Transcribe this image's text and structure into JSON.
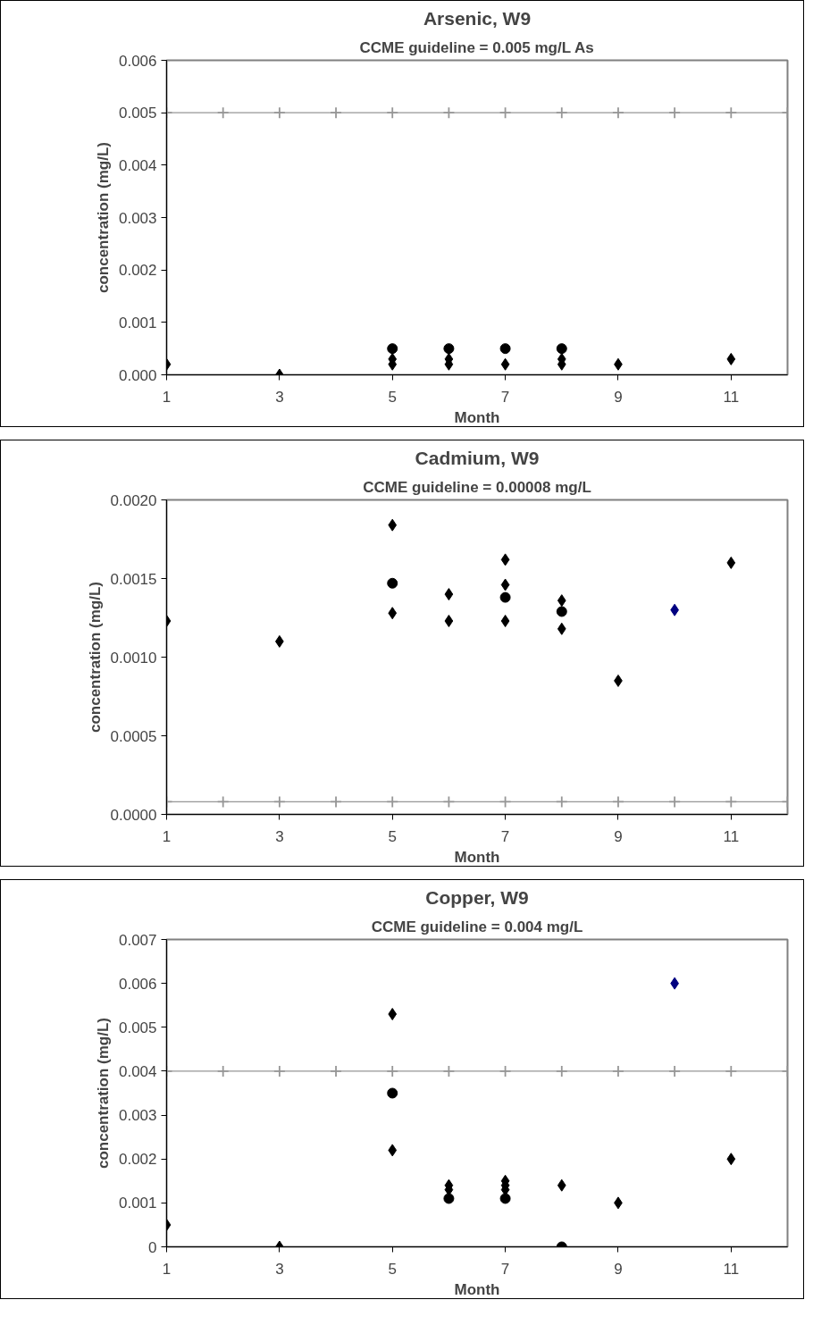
{
  "chart_data": [
    {
      "type": "scatter",
      "title": "Arsenic, W9",
      "subtitle": "CCME guideline = 0.005 mg/L As",
      "xlabel": "Month",
      "ylabel": "concentration (mg/L)",
      "xlim": [
        1,
        12
      ],
      "xticks": [
        1,
        3,
        5,
        7,
        9,
        11
      ],
      "ylim": [
        0,
        0.006
      ],
      "yticks": [
        {
          "value": 0,
          "label": "0.000"
        },
        {
          "value": 0.001,
          "label": "0.001"
        },
        {
          "value": 0.002,
          "label": "0.002"
        },
        {
          "value": 0.003,
          "label": "0.003"
        },
        {
          "value": 0.004,
          "label": "0.004"
        },
        {
          "value": 0.005,
          "label": "0.005"
        },
        {
          "value": 0.006,
          "label": "0.006"
        }
      ],
      "grid": false,
      "series": [
        {
          "type": "line",
          "marker": "cross",
          "color": "#969696",
          "x": [
            1,
            2,
            3,
            4,
            5,
            6,
            7,
            8,
            9,
            10,
            11,
            12
          ],
          "values": [
            0.005,
            0.005,
            0.005,
            0.005,
            0.005,
            0.005,
            0.005,
            0.005,
            0.005,
            0.005,
            0.005,
            0.005
          ]
        },
        {
          "marker": "diamond",
          "color": "#000000",
          "x": [
            1,
            3,
            5,
            5,
            6,
            6,
            7,
            8,
            8,
            9,
            11
          ],
          "values": [
            0.0002,
            0,
            0.0003,
            0.0002,
            0.0003,
            0.0002,
            0.0002,
            0.0003,
            0.0002,
            0.0002,
            0.0003
          ]
        },
        {
          "marker": "circle",
          "color": "#000000",
          "x": [
            5,
            6,
            7,
            8
          ],
          "values": [
            0.0005,
            0.0005,
            0.0005,
            0.0005
          ]
        }
      ]
    },
    {
      "type": "scatter",
      "title": "Cadmium, W9",
      "subtitle": "CCME guideline = 0.00008 mg/L",
      "xlabel": "Month",
      "ylabel": "concentration (mg/L)",
      "xlim": [
        1,
        12
      ],
      "xticks": [
        1,
        3,
        5,
        7,
        9,
        11
      ],
      "ylim": [
        0,
        0.002
      ],
      "yticks": [
        {
          "value": 0,
          "label": "0.0000"
        },
        {
          "value": 0.0005,
          "label": "0.0005"
        },
        {
          "value": 0.001,
          "label": "0.0010"
        },
        {
          "value": 0.0015,
          "label": "0.0015"
        },
        {
          "value": 0.002,
          "label": "0.0020"
        }
      ],
      "grid": false,
      "series": [
        {
          "type": "line",
          "marker": "cross",
          "color": "#969696",
          "x": [
            1,
            2,
            3,
            4,
            5,
            6,
            7,
            8,
            9,
            10,
            11,
            12
          ],
          "values": [
            8e-05,
            8e-05,
            8e-05,
            8e-05,
            8e-05,
            8e-05,
            8e-05,
            8e-05,
            8e-05,
            8e-05,
            8e-05,
            8e-05
          ]
        },
        {
          "marker": "diamond",
          "color": "#000000",
          "x": [
            1,
            3,
            5,
            5,
            6,
            6,
            7,
            7,
            7,
            8,
            8,
            9,
            11
          ],
          "values": [
            0.00123,
            0.0011,
            0.00184,
            0.00128,
            0.0014,
            0.00123,
            0.00162,
            0.00146,
            0.00123,
            0.00136,
            0.00118,
            0.00085,
            0.0016
          ]
        },
        {
          "marker": "circle",
          "color": "#000000",
          "x": [
            5,
            7,
            8
          ],
          "values": [
            0.00147,
            0.00138,
            0.00129
          ]
        },
        {
          "marker": "diamond",
          "color": "#000080",
          "x": [
            10
          ],
          "values": [
            0.0013
          ]
        }
      ]
    },
    {
      "type": "scatter",
      "title": "Copper, W9",
      "subtitle": "CCME guideline = 0.004 mg/L",
      "xlabel": "Month",
      "ylabel": "concentration (mg/L)",
      "xlim": [
        1,
        12
      ],
      "xticks": [
        1,
        3,
        5,
        7,
        9,
        11
      ],
      "ylim": [
        0,
        0.007
      ],
      "yticks": [
        0,
        0.001,
        0.002,
        0.003,
        0.004,
        0.005,
        0.006,
        0.007
      ],
      "grid": false,
      "series": [
        {
          "type": "line",
          "marker": "cross",
          "color": "#969696",
          "x": [
            1,
            2,
            3,
            4,
            5,
            6,
            7,
            8,
            9,
            10,
            11,
            12
          ],
          "values": [
            0.004,
            0.004,
            0.004,
            0.004,
            0.004,
            0.004,
            0.004,
            0.004,
            0.004,
            0.004,
            0.004,
            0.004
          ]
        },
        {
          "marker": "diamond",
          "color": "#000000",
          "x": [
            1,
            3,
            5,
            5,
            6,
            6,
            7,
            7,
            7,
            8,
            9,
            11
          ],
          "values": [
            0.0005,
            0,
            0.0053,
            0.0022,
            0.0014,
            0.0013,
            0.0015,
            0.0014,
            0.0013,
            0.0014,
            0.001,
            0.002
          ]
        },
        {
          "marker": "circle",
          "color": "#000000",
          "x": [
            5,
            6,
            7,
            8
          ],
          "values": [
            0.0035,
            0.0011,
            0.0011,
            0
          ]
        },
        {
          "marker": "diamond",
          "color": "#000080",
          "x": [
            10
          ],
          "values": [
            0.006
          ]
        }
      ]
    }
  ]
}
